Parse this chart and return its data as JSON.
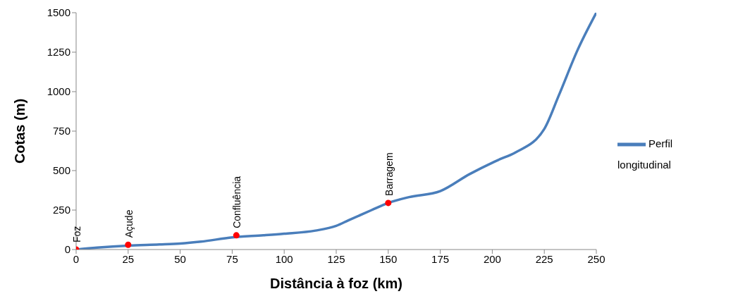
{
  "chart_data": {
    "type": "line",
    "xlabel": "Distância à foz (km)",
    "ylabel": "Cotas (m)",
    "series": [
      {
        "name": "Perfil longitudinal",
        "color": "#4a7ebb",
        "type": "line",
        "marker": "none",
        "x": [
          0,
          10,
          25,
          40,
          50,
          60,
          75,
          90,
          100,
          115,
          125,
          131,
          142,
          150,
          160,
          175,
          189,
          200,
          203,
          211,
          225,
          232,
          241,
          250
        ],
        "values": [
          0,
          12,
          25,
          32,
          38,
          50,
          77,
          90,
          100,
          120,
          150,
          186,
          250,
          295,
          332,
          370,
          477,
          550,
          568,
          614,
          764,
          977,
          1264,
          1500
        ]
      },
      {
        "type": "scatter",
        "color": "#ff0000",
        "marker": "circle",
        "x": [
          0,
          25,
          77,
          150
        ],
        "values": [
          0,
          30,
          90,
          295
        ]
      }
    ],
    "annotations": [
      {
        "text": "Foz",
        "x": 0,
        "y": 0
      },
      {
        "text": "Açude",
        "x": 25,
        "y": 30
      },
      {
        "text": "Confluência",
        "x": 77,
        "y": 90
      },
      {
        "text": "Barragem",
        "x": 150,
        "y": 295
      }
    ],
    "xlim": [
      0,
      250
    ],
    "xticks": [
      0,
      25,
      50,
      75,
      100,
      125,
      150,
      175,
      200,
      225,
      250
    ],
    "ylim": [
      0,
      1500
    ],
    "yticks": [
      0,
      250,
      500,
      750,
      1000,
      1250,
      1500
    ],
    "grid": false,
    "legend": "right"
  }
}
